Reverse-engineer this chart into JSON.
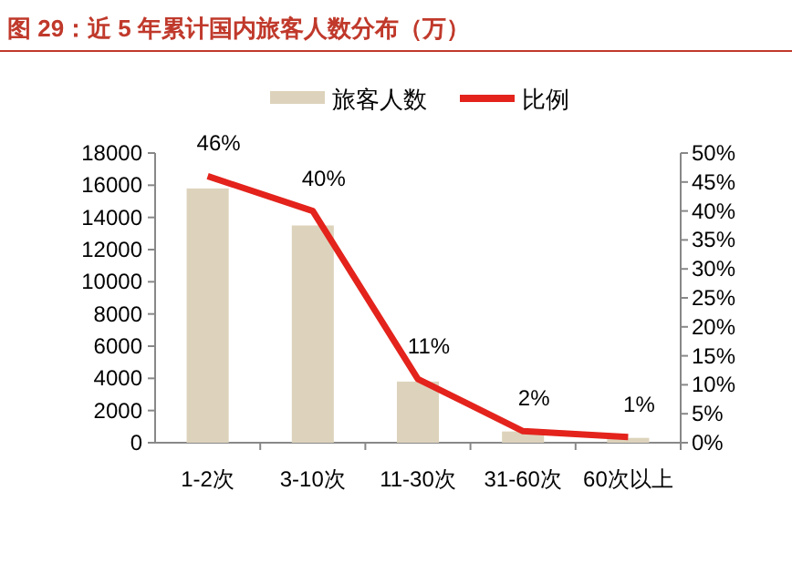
{
  "chart_data": {
    "type": "bar",
    "title": "图 29：近 5 年累计国内旅客人数分布（万）",
    "categories": [
      "1-2次",
      "3-10次",
      "11-30次",
      "31-60次",
      "60次以上"
    ],
    "series": [
      {
        "name": "旅客人数",
        "color": "#ddd3bc",
        "values": [
          15800,
          13500,
          3800,
          700,
          300
        ]
      },
      {
        "name": "比例",
        "type": "line",
        "axis": "y2",
        "color": "#e3231c",
        "values": [
          46,
          40,
          11,
          2,
          1
        ],
        "value_labels": [
          "46%",
          "40%",
          "11%",
          "2%",
          "1%"
        ]
      }
    ],
    "ylim": [
      0,
      18000
    ],
    "yticks": [
      0,
      2000,
      4000,
      6000,
      8000,
      10000,
      12000,
      14000,
      16000,
      18000
    ],
    "y2lim": [
      0,
      50
    ],
    "y2ticks": [
      {
        "value": 0,
        "label": "0%"
      },
      {
        "value": 5,
        "label": "5%"
      },
      {
        "value": 10,
        "label": "10%"
      },
      {
        "value": 15,
        "label": "15%"
      },
      {
        "value": 20,
        "label": "20%"
      },
      {
        "value": 25,
        "label": "25%"
      },
      {
        "value": 30,
        "label": "30%"
      },
      {
        "value": 35,
        "label": "35%"
      },
      {
        "value": 40,
        "label": "40%"
      },
      {
        "value": 45,
        "label": "45%"
      },
      {
        "value": 50,
        "label": "50%"
      }
    ],
    "legend": "top",
    "grid": false
  }
}
